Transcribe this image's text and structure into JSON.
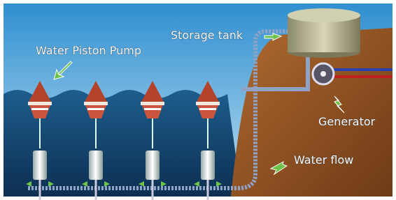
{
  "nodes": [
    {
      "label": "Water Piston Pump"
    },
    {
      "label": "Storage tank"
    },
    {
      "label": "Generator"
    },
    {
      "label": "Water flow"
    }
  ]
}
